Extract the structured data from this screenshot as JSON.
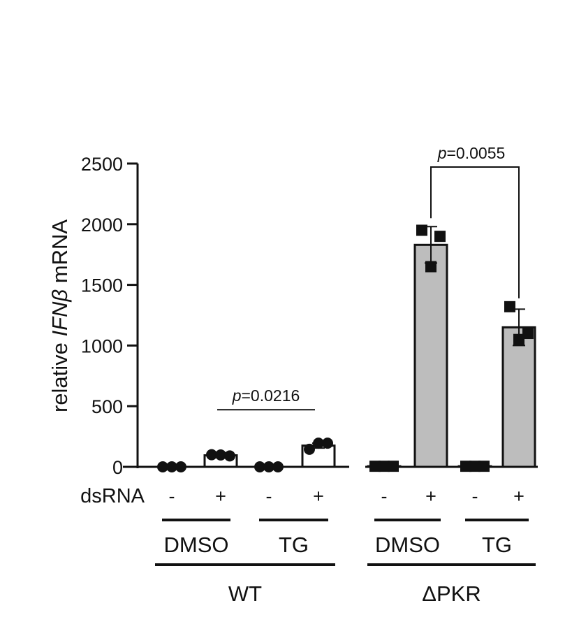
{
  "chart_data": {
    "type": "bar",
    "ylabel": {
      "prefix": "relative ",
      "gene": "IFNβ",
      "suffix": " mRNA"
    },
    "ylim": [
      0,
      2500
    ],
    "yticks": [
      0,
      500,
      1000,
      1500,
      2000,
      2500
    ],
    "ytick_labels": [
      "0",
      "500",
      "1000",
      "1500",
      "2000",
      "2500"
    ],
    "row_label": "dsRNA",
    "colors": {
      "wt_bar": "#ffffff",
      "pkr_bar": "#bdbdbd",
      "stroke": "#111111"
    },
    "bars": [
      {
        "genotype": "WT",
        "treatment": "DMSO",
        "dsrna": "-",
        "mean": 0,
        "sd": 0,
        "points": [
          0,
          0,
          0
        ],
        "marker": "circle"
      },
      {
        "genotype": "WT",
        "treatment": "DMSO",
        "dsrna": "+",
        "mean": 95,
        "sd": 8,
        "points": [
          100,
          98,
          90
        ],
        "marker": "circle"
      },
      {
        "genotype": "WT",
        "treatment": "TG",
        "dsrna": "-",
        "mean": 0,
        "sd": 0,
        "points": [
          0,
          0,
          0
        ],
        "marker": "circle"
      },
      {
        "genotype": "WT",
        "treatment": "TG",
        "dsrna": "+",
        "mean": 175,
        "sd": 20,
        "points": [
          145,
          195,
          195
        ],
        "marker": "circle"
      },
      {
        "genotype": "ΔPKR",
        "treatment": "DMSO",
        "dsrna": "-",
        "mean": 5,
        "sd": 0,
        "points": [
          5,
          5,
          5
        ],
        "marker": "square"
      },
      {
        "genotype": "ΔPKR",
        "treatment": "DMSO",
        "dsrna": "+",
        "mean": 1830,
        "sd": 150,
        "points": [
          1950,
          1650,
          1900
        ],
        "marker": "square"
      },
      {
        "genotype": "ΔPKR",
        "treatment": "TG",
        "dsrna": "-",
        "mean": 5,
        "sd": 0,
        "points": [
          5,
          5,
          5
        ],
        "marker": "square"
      },
      {
        "genotype": "ΔPKR",
        "treatment": "TG",
        "dsrna": "+",
        "mean": 1150,
        "sd": 150,
        "points": [
          1320,
          1050,
          1100
        ],
        "marker": "square"
      }
    ],
    "treatment_groups": [
      "DMSO",
      "TG",
      "DMSO",
      "TG"
    ],
    "genotype_groups": [
      "WT",
      "ΔPKR"
    ],
    "comparisons": [
      {
        "text": "p=0.0216",
        "from_bar": 1,
        "to_bar": 3,
        "y": 500
      },
      {
        "text": "p=0.0055",
        "from_bar": 5,
        "to_bar": 7,
        "y": 2500
      }
    ]
  }
}
